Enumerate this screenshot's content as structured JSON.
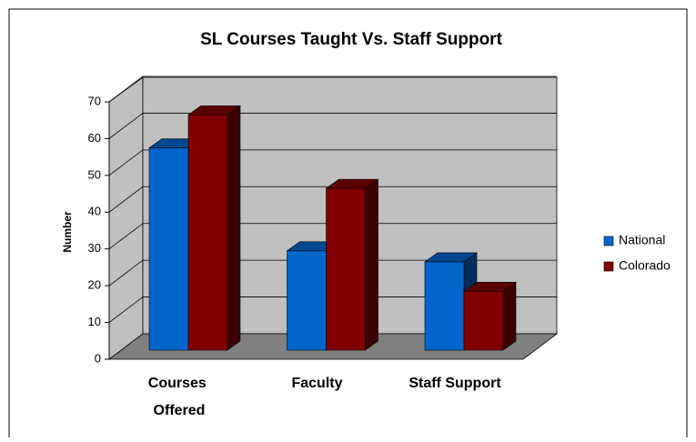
{
  "chart_data": {
    "type": "bar3d",
    "title": "SL Courses Taught Vs. Staff Support",
    "y_label": "Number",
    "categories": [
      "Courses Offered",
      "Faculty",
      "Staff Support"
    ],
    "series": [
      {
        "name": "National",
        "color": "#0066cc",
        "values": [
          55,
          27,
          24
        ]
      },
      {
        "name": "Colorado",
        "color": "#800000",
        "values": [
          64,
          44,
          16
        ]
      }
    ],
    "ylim": [
      0,
      70
    ],
    "yticks": [
      0,
      10,
      20,
      30,
      40,
      50,
      60,
      70
    ],
    "grid": true,
    "legend": "right"
  }
}
